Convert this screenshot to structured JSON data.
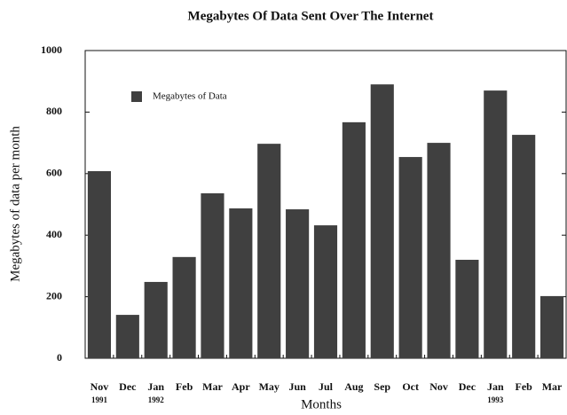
{
  "chart_data": {
    "type": "bar",
    "title": "Megabytes Of Data Sent Over The Internet",
    "x_label": "Months",
    "y_label": "Megabytes of data per month",
    "categories": [
      "Nov",
      "Dec",
      "Jan",
      "Feb",
      "Mar",
      "Apr",
      "May",
      "Jun",
      "Jul",
      "Aug",
      "Sep",
      "Oct",
      "Nov",
      "Dec",
      "Jan",
      "Feb",
      "Mar"
    ],
    "year_labels": [
      "1991",
      null,
      "1992",
      null,
      null,
      null,
      null,
      null,
      null,
      null,
      null,
      null,
      null,
      null,
      "1993",
      null,
      null
    ],
    "series": [
      {
        "name": "Megabytes of Data",
        "color": "#404040",
        "values": [
          608,
          141,
          248,
          329,
          536,
          487,
          697,
          484,
          432,
          767,
          890,
          654,
          700,
          320,
          870,
          726,
          202
        ]
      }
    ],
    "ylim": [
      0,
      1000
    ],
    "yticks": [
      0,
      200,
      400,
      600,
      800,
      1000
    ],
    "legend": "upper-left"
  }
}
